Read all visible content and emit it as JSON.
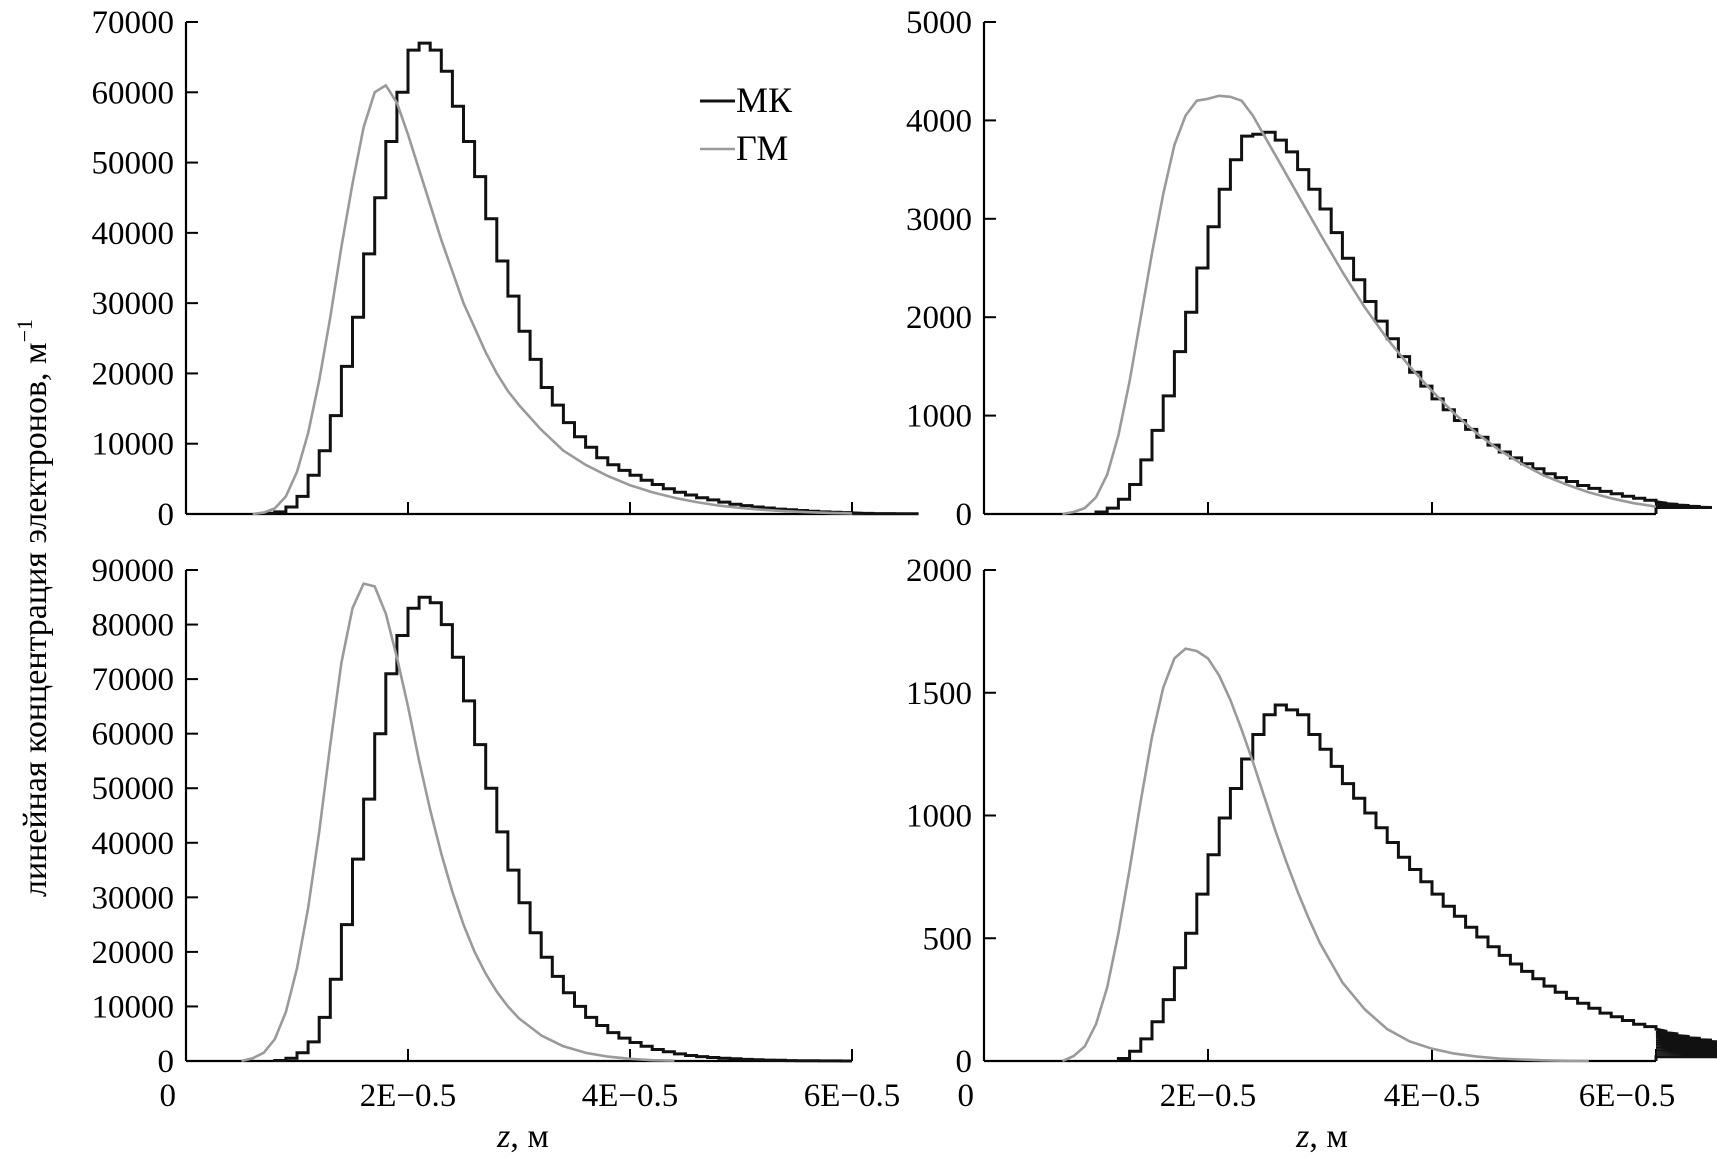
{
  "figure": {
    "ylabel": "линейная концентрация электронов, м",
    "ylabel_sup": "−1",
    "xlabel_var": "z",
    "xlabel_rest": ", м",
    "legend": [
      {
        "label": "МК",
        "color": "#111111"
      },
      {
        "label": "ГМ",
        "color": "#9a9a9a"
      }
    ]
  },
  "chart_data": [
    {
      "type": "line",
      "panel": "top-left",
      "xlim": [
        0,
        0.6
      ],
      "ylim": [
        0,
        70000
      ],
      "yticks": [
        0,
        10000,
        20000,
        30000,
        40000,
        50000,
        60000,
        70000
      ],
      "ytick_labels": [
        "0",
        "10000",
        "20000",
        "30000",
        "40000",
        "50000",
        "60000",
        "70000"
      ],
      "xticks": [
        0.2,
        0.4,
        0.6
      ],
      "xtick_labels": [
        "",
        "",
        ""
      ],
      "legend_position": "top-right",
      "series": [
        {
          "name": "МК",
          "kind": "step",
          "bin_width": 0.01,
          "x_start": 0.07,
          "values": [
            100,
            300,
            1000,
            2500,
            5500,
            9000,
            14000,
            21000,
            28000,
            37000,
            45000,
            53000,
            60000,
            66000,
            67000,
            66000,
            63000,
            58000,
            53000,
            48000,
            42000,
            36000,
            31000,
            26000,
            22000,
            18000,
            15500,
            13000,
            11000,
            9500,
            8000,
            7000,
            6200,
            5500,
            4800,
            4200,
            3600,
            3100,
            2700,
            2300,
            2000,
            1700,
            1400,
            1200,
            1000,
            850,
            700,
            600,
            500,
            400,
            300,
            250,
            200,
            150,
            100,
            80,
            60,
            50,
            40,
            30
          ]
        },
        {
          "name": "ГМ",
          "kind": "curve",
          "x": [
            0.06,
            0.07,
            0.08,
            0.09,
            0.1,
            0.11,
            0.12,
            0.13,
            0.14,
            0.15,
            0.16,
            0.17,
            0.18,
            0.19,
            0.2,
            0.21,
            0.22,
            0.23,
            0.24,
            0.25,
            0.26,
            0.27,
            0.28,
            0.29,
            0.3,
            0.32,
            0.34,
            0.36,
            0.38,
            0.4,
            0.42,
            0.44,
            0.46,
            0.48,
            0.5,
            0.52,
            0.54,
            0.56,
            0.58,
            0.6
          ],
          "y": [
            0,
            200,
            800,
            2500,
            6000,
            11500,
            19000,
            28000,
            38000,
            47000,
            55000,
            60000,
            61000,
            58500,
            54000,
            49000,
            44000,
            39000,
            34500,
            30000,
            26500,
            23000,
            20000,
            17500,
            15500,
            12000,
            9000,
            7000,
            5400,
            4100,
            3100,
            2300,
            1700,
            1200,
            850,
            600,
            400,
            250,
            150,
            80
          ]
        }
      ]
    },
    {
      "type": "line",
      "panel": "top-right",
      "xlim": [
        0,
        0.6
      ],
      "ylim": [
        0,
        5000
      ],
      "yticks": [
        0,
        1000,
        2000,
        3000,
        4000,
        5000
      ],
      "ytick_labels": [
        "0",
        "1000",
        "2000",
        "3000",
        "4000",
        "5000"
      ],
      "xticks": [
        0.2,
        0.4,
        0.6
      ],
      "xtick_labels": [
        "",
        "",
        ""
      ],
      "series": [
        {
          "name": "МК",
          "kind": "step",
          "bin_width": 0.01,
          "x_start": 0.1,
          "values": [
            20,
            60,
            150,
            300,
            550,
            850,
            1200,
            1650,
            2050,
            2500,
            2920,
            3300,
            3600,
            3840,
            3860,
            3880,
            3800,
            3680,
            3500,
            3300,
            3100,
            2860,
            2600,
            2380,
            2160,
            1960,
            1780,
            1600,
            1440,
            1300,
            1170,
            1060,
            950,
            860,
            780,
            700,
            630,
            570,
            510,
            460,
            410,
            370,
            330,
            290,
            260,
            230,
            205,
            180,
            160,
            140,
            125,
            110,
            98,
            86,
            76,
            66
          ]
        },
        {
          "name": "ГМ",
          "kind": "curve",
          "x": [
            0.07,
            0.08,
            0.09,
            0.1,
            0.11,
            0.12,
            0.13,
            0.14,
            0.15,
            0.16,
            0.17,
            0.18,
            0.19,
            0.2,
            0.21,
            0.22,
            0.23,
            0.24,
            0.25,
            0.26,
            0.28,
            0.3,
            0.32,
            0.34,
            0.36,
            0.38,
            0.4,
            0.42,
            0.44,
            0.46,
            0.48,
            0.5,
            0.52,
            0.54,
            0.56,
            0.58,
            0.6
          ],
          "y": [
            0,
            20,
            60,
            170,
            400,
            800,
            1350,
            2000,
            2650,
            3250,
            3750,
            4050,
            4200,
            4220,
            4250,
            4240,
            4200,
            4050,
            3850,
            3650,
            3250,
            2850,
            2460,
            2100,
            1780,
            1500,
            1250,
            1020,
            820,
            650,
            510,
            390,
            300,
            220,
            160,
            110,
            75
          ]
        }
      ]
    },
    {
      "type": "line",
      "panel": "bottom-left",
      "xlim": [
        0,
        0.6
      ],
      "ylim": [
        0,
        90000
      ],
      "yticks": [
        0,
        10000,
        20000,
        30000,
        40000,
        50000,
        60000,
        70000,
        80000,
        90000
      ],
      "ytick_labels": [
        "0",
        "10000",
        "20000",
        "30000",
        "40000",
        "50000",
        "60000",
        "70000",
        "80000",
        "90000"
      ],
      "xticks": [
        0,
        0.2,
        0.4,
        0.6
      ],
      "xtick_labels": [
        "0",
        "2E−0.5",
        "4E−0.5",
        "6E−0.5"
      ],
      "series": [
        {
          "name": "МК",
          "kind": "step",
          "bin_width": 0.01,
          "x_start": 0.08,
          "values": [
            100,
            500,
            1500,
            3500,
            8000,
            15000,
            25000,
            37000,
            48000,
            60000,
            71000,
            78000,
            83000,
            85000,
            84000,
            80000,
            74000,
            66000,
            58000,
            50000,
            42000,
            35000,
            29000,
            23500,
            19000,
            15500,
            12500,
            10000,
            8000,
            6500,
            5200,
            4200,
            3400,
            2700,
            2100,
            1700,
            1300,
            1000,
            800,
            650,
            500,
            400,
            300,
            220,
            160,
            120,
            80,
            50,
            30,
            20,
            10,
            5
          ]
        },
        {
          "name": "ГМ",
          "kind": "curve",
          "x": [
            0.05,
            0.06,
            0.07,
            0.08,
            0.09,
            0.1,
            0.11,
            0.12,
            0.13,
            0.14,
            0.15,
            0.16,
            0.17,
            0.18,
            0.19,
            0.2,
            0.21,
            0.22,
            0.23,
            0.24,
            0.25,
            0.26,
            0.27,
            0.28,
            0.29,
            0.3,
            0.32,
            0.34,
            0.36,
            0.38,
            0.4,
            0.42,
            0.44
          ],
          "y": [
            0,
            500,
            1500,
            4000,
            9000,
            17000,
            28000,
            42000,
            58000,
            73000,
            83000,
            87500,
            87000,
            82000,
            74000,
            65000,
            55000,
            46000,
            38000,
            31000,
            25000,
            20000,
            16000,
            12700,
            10000,
            7800,
            4700,
            2700,
            1500,
            800,
            400,
            150,
            50
          ]
        }
      ]
    },
    {
      "type": "line",
      "panel": "bottom-right",
      "xlim": [
        0,
        0.6
      ],
      "ylim": [
        0,
        2000
      ],
      "yticks": [
        0,
        500,
        1000,
        1500,
        2000
      ],
      "ytick_labels": [
        "0",
        "500",
        "1000",
        "1500",
        "2000"
      ],
      "xticks": [
        0,
        0.2,
        0.4,
        0.6
      ],
      "xtick_labels": [
        "0",
        "2E−0.5",
        "4E−0.5",
        "6E−0.5"
      ],
      "series": [
        {
          "name": "МК",
          "kind": "step",
          "bin_width": 0.01,
          "x_start": 0.12,
          "values": [
            10,
            40,
            90,
            160,
            250,
            380,
            520,
            680,
            840,
            990,
            1110,
            1230,
            1330,
            1410,
            1450,
            1430,
            1410,
            1330,
            1270,
            1200,
            1130,
            1070,
            1010,
            950,
            890,
            830,
            780,
            730,
            680,
            630,
            590,
            545,
            505,
            465,
            430,
            395,
            365,
            335,
            305,
            280,
            255,
            235,
            215,
            195,
            180,
            165,
            150,
            140,
            130,
            120,
            110,
            100,
            92,
            85,
            78,
            70,
            64,
            58,
            52,
            47,
            42,
            38,
            34,
            30,
            27,
            24,
            21,
            19,
            17
          ]
        },
        {
          "name": "ГМ",
          "kind": "curve",
          "x": [
            0.07,
            0.08,
            0.09,
            0.1,
            0.11,
            0.12,
            0.13,
            0.14,
            0.15,
            0.16,
            0.17,
            0.18,
            0.19,
            0.2,
            0.21,
            0.22,
            0.23,
            0.24,
            0.25,
            0.26,
            0.27,
            0.28,
            0.29,
            0.3,
            0.32,
            0.34,
            0.36,
            0.38,
            0.4,
            0.42,
            0.44,
            0.46,
            0.48,
            0.5,
            0.52,
            0.54
          ],
          "y": [
            0,
            20,
            60,
            150,
            300,
            520,
            780,
            1060,
            1320,
            1520,
            1640,
            1680,
            1670,
            1640,
            1570,
            1470,
            1350,
            1220,
            1080,
            940,
            810,
            690,
            580,
            480,
            320,
            210,
            130,
            80,
            50,
            30,
            18,
            10,
            6,
            3,
            1,
            0
          ]
        }
      ]
    }
  ]
}
